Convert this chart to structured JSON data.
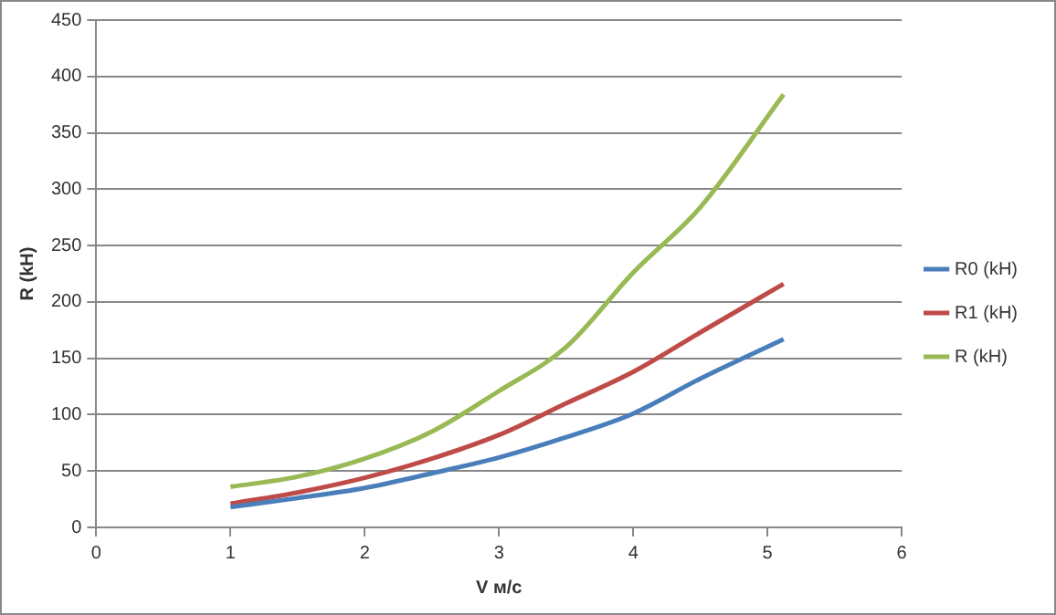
{
  "chart_data": {
    "type": "line",
    "xlabel": "V м/с",
    "ylabel": "R (kH)",
    "xlim": [
      0,
      6
    ],
    "xticks": [
      0,
      1,
      2,
      3,
      4,
      5,
      6
    ],
    "ylim": [
      0,
      450
    ],
    "yticks": [
      0,
      50,
      100,
      150,
      200,
      250,
      300,
      350,
      400,
      450
    ],
    "grid": "y",
    "legend": "right",
    "marker": "none",
    "line_style": "solid",
    "series": [
      {
        "name": "R0 (kH)",
        "color": "#4a7ebb",
        "x": [
          1,
          1.5,
          2,
          2.5,
          3,
          3.5,
          4,
          4.5,
          5.12
        ],
        "values": [
          18,
          26,
          35,
          48,
          62,
          80,
          101,
          132,
          167
        ]
      },
      {
        "name": "R1 (kH)",
        "color": "#be4b48",
        "x": [
          1,
          1.5,
          2,
          2.5,
          3,
          3.5,
          4,
          4.5,
          5.12
        ],
        "values": [
          21,
          31,
          44,
          61,
          82,
          110,
          138,
          173,
          216
        ]
      },
      {
        "name": "R (kH)",
        "color": "#98b954",
        "x": [
          1,
          1.5,
          2,
          2.5,
          3,
          3.5,
          4,
          4.5,
          5.12
        ],
        "values": [
          36,
          45,
          61,
          85,
          121,
          160,
          226,
          284,
          384
        ]
      }
    ]
  }
}
